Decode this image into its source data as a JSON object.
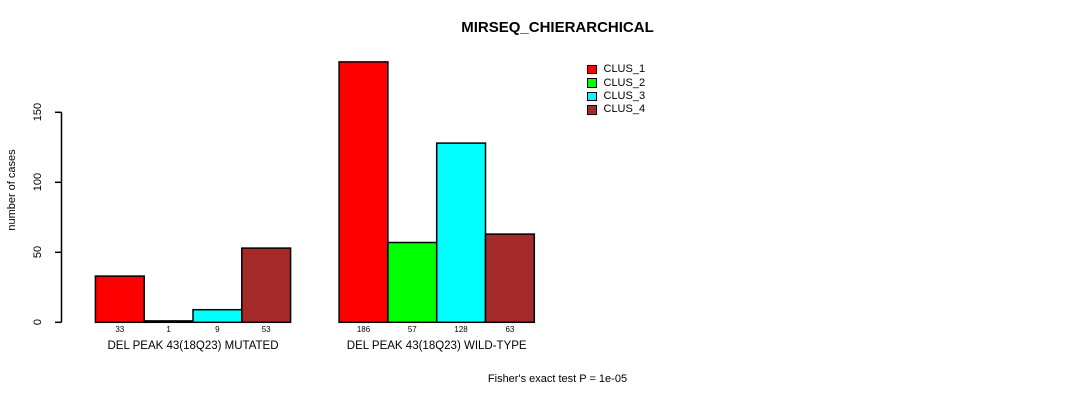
{
  "chart_data": {
    "type": "bar",
    "title": "MIRSEQ_CHIERARCHICAL",
    "ylabel": "number of cases",
    "xlabel": "",
    "categories": [
      "DEL PEAK 43(18Q23) MUTATED",
      "DEL PEAK 43(18Q23) WILD-TYPE"
    ],
    "series": [
      {
        "name": "CLUS_1",
        "color": "#FF0000",
        "values": [
          33,
          186
        ]
      },
      {
        "name": "CLUS_2",
        "color": "#00FF00",
        "values": [
          1,
          57
        ]
      },
      {
        "name": "CLUS_3",
        "color": "#00FFFF",
        "values": [
          9,
          128
        ]
      },
      {
        "name": "CLUS_4",
        "color": "#A52A2A",
        "values": [
          53,
          63
        ]
      }
    ],
    "bar_value_labels": [
      [
        33,
        1,
        9,
        53
      ],
      [
        186,
        57,
        128,
        63
      ]
    ],
    "yticks": [
      0,
      50,
      100,
      150
    ],
    "ylim": [
      0,
      190
    ],
    "grid": false,
    "legend": {
      "entries": [
        "CLUS_1",
        "CLUS_2",
        "CLUS_3",
        "CLUS_4"
      ],
      "position": "inside-top-center"
    },
    "annotation": "Fisher's exact test P = 1e-05",
    "axis_color": "#000000",
    "bar_border_color": "#000000",
    "background_color": "#FFFFFF"
  }
}
